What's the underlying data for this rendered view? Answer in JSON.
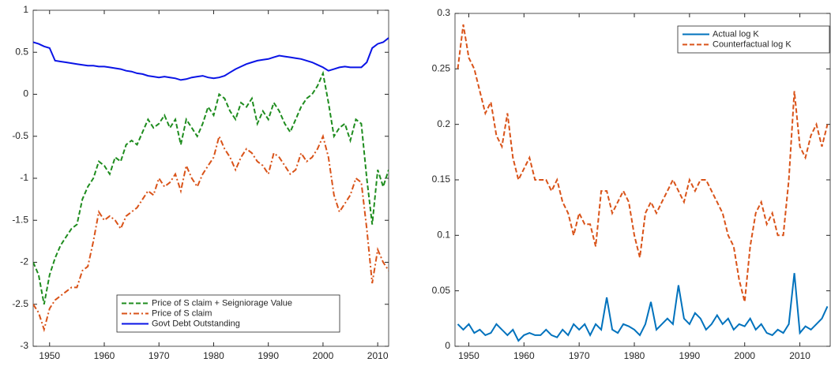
{
  "chart_data": [
    {
      "type": "line",
      "x": [
        1947,
        1948,
        1949,
        1950,
        1951,
        1952,
        1953,
        1954,
        1955,
        1956,
        1957,
        1958,
        1959,
        1960,
        1961,
        1962,
        1963,
        1964,
        1965,
        1966,
        1967,
        1968,
        1969,
        1970,
        1971,
        1972,
        1973,
        1974,
        1975,
        1976,
        1977,
        1978,
        1979,
        1980,
        1981,
        1982,
        1983,
        1984,
        1985,
        1986,
        1987,
        1988,
        1989,
        1990,
        1991,
        1992,
        1993,
        1994,
        1995,
        1996,
        1997,
        1998,
        1999,
        2000,
        2001,
        2002,
        2003,
        2004,
        2005,
        2006,
        2007,
        2008,
        2009,
        2010,
        2011,
        2012
      ],
      "series": [
        {
          "name": "Price of S claim + Seigniorage Value",
          "color": "#1e8c1e",
          "style": "dashed",
          "values": [
            -2.0,
            -2.15,
            -2.5,
            -2.15,
            -1.95,
            -1.8,
            -1.7,
            -1.6,
            -1.55,
            -1.25,
            -1.1,
            -1.0,
            -0.8,
            -0.85,
            -0.95,
            -0.75,
            -0.8,
            -0.6,
            -0.55,
            -0.6,
            -0.45,
            -0.3,
            -0.4,
            -0.35,
            -0.25,
            -0.4,
            -0.3,
            -0.6,
            -0.3,
            -0.4,
            -0.5,
            -0.35,
            -0.15,
            -0.25,
            0.0,
            -0.05,
            -0.2,
            -0.3,
            -0.1,
            -0.15,
            -0.05,
            -0.35,
            -0.2,
            -0.3,
            -0.1,
            -0.2,
            -0.35,
            -0.45,
            -0.3,
            -0.15,
            -0.05,
            0.0,
            0.1,
            0.25,
            -0.1,
            -0.5,
            -0.4,
            -0.35,
            -0.55,
            -0.3,
            -0.35,
            -1.0,
            -1.55,
            -0.9,
            -1.1,
            -0.9
          ]
        },
        {
          "name": "Price of S claim",
          "color": "#d95319",
          "style": "dashdot",
          "values": [
            -2.5,
            -2.6,
            -2.8,
            -2.55,
            -2.45,
            -2.4,
            -2.35,
            -2.3,
            -2.3,
            -2.1,
            -2.05,
            -1.75,
            -1.4,
            -1.5,
            -1.45,
            -1.5,
            -1.6,
            -1.45,
            -1.4,
            -1.35,
            -1.25,
            -1.15,
            -1.2,
            -1.0,
            -1.1,
            -1.05,
            -0.95,
            -1.15,
            -0.85,
            -1.0,
            -1.1,
            -0.95,
            -0.85,
            -0.75,
            -0.5,
            -0.65,
            -0.75,
            -0.9,
            -0.75,
            -0.65,
            -0.7,
            -0.8,
            -0.85,
            -0.95,
            -0.7,
            -0.75,
            -0.85,
            -0.95,
            -0.9,
            -0.7,
            -0.8,
            -0.75,
            -0.65,
            -0.5,
            -0.75,
            -1.2,
            -1.4,
            -1.3,
            -1.2,
            -1.0,
            -1.05,
            -1.6,
            -2.25,
            -1.85,
            -2.0,
            -2.1
          ]
        },
        {
          "name": "Govt Debt Outstanding",
          "color": "#0a14e6",
          "style": "solid",
          "values": [
            0.62,
            0.6,
            0.57,
            0.55,
            0.4,
            0.39,
            0.38,
            0.37,
            0.36,
            0.35,
            0.34,
            0.34,
            0.33,
            0.33,
            0.32,
            0.31,
            0.3,
            0.28,
            0.27,
            0.25,
            0.24,
            0.22,
            0.21,
            0.2,
            0.21,
            0.2,
            0.19,
            0.17,
            0.18,
            0.2,
            0.21,
            0.22,
            0.2,
            0.19,
            0.2,
            0.22,
            0.26,
            0.3,
            0.33,
            0.36,
            0.38,
            0.4,
            0.41,
            0.42,
            0.44,
            0.46,
            0.45,
            0.44,
            0.43,
            0.42,
            0.4,
            0.38,
            0.35,
            0.32,
            0.28,
            0.3,
            0.32,
            0.33,
            0.32,
            0.32,
            0.32,
            0.38,
            0.55,
            0.6,
            0.62,
            0.67
          ]
        }
      ],
      "xlim": [
        1947,
        2012
      ],
      "xticks": [
        1950,
        1960,
        1970,
        1980,
        1990,
        2000,
        2010
      ],
      "ylim": [
        -3,
        1
      ],
      "yticks": [
        -3,
        -2.5,
        -2,
        -1.5,
        -1,
        -0.5,
        0,
        0.5,
        1
      ],
      "legend": "lower right"
    },
    {
      "type": "line",
      "x": [
        1948,
        1949,
        1950,
        1951,
        1952,
        1953,
        1954,
        1955,
        1956,
        1957,
        1958,
        1959,
        1960,
        1961,
        1962,
        1963,
        1964,
        1965,
        1966,
        1967,
        1968,
        1969,
        1970,
        1971,
        1972,
        1973,
        1974,
        1975,
        1976,
        1977,
        1978,
        1979,
        1980,
        1981,
        1982,
        1983,
        1984,
        1985,
        1986,
        1987,
        1988,
        1989,
        1990,
        1991,
        1992,
        1993,
        1994,
        1995,
        1996,
        1997,
        1998,
        1999,
        2000,
        2001,
        2002,
        2003,
        2004,
        2005,
        2006,
        2007,
        2008,
        2009,
        2010,
        2011,
        2012,
        2013,
        2014,
        2015
      ],
      "series": [
        {
          "name": "Actual log K",
          "color": "#0072bd",
          "style": "solid",
          "values": [
            0.02,
            0.015,
            0.02,
            0.012,
            0.015,
            0.01,
            0.012,
            0.02,
            0.015,
            0.01,
            0.015,
            0.005,
            0.01,
            0.012,
            0.01,
            0.01,
            0.015,
            0.01,
            0.008,
            0.015,
            0.01,
            0.02,
            0.015,
            0.02,
            0.01,
            0.02,
            0.015,
            0.044,
            0.015,
            0.012,
            0.02,
            0.018,
            0.015,
            0.01,
            0.02,
            0.04,
            0.015,
            0.02,
            0.025,
            0.02,
            0.055,
            0.025,
            0.02,
            0.03,
            0.025,
            0.015,
            0.02,
            0.028,
            0.02,
            0.025,
            0.015,
            0.02,
            0.018,
            0.025,
            0.015,
            0.02,
            0.012,
            0.01,
            0.015,
            0.012,
            0.02,
            0.066,
            0.012,
            0.018,
            0.015,
            0.02,
            0.025,
            0.036
          ]
        },
        {
          "name": "Counterfactual log K",
          "color": "#d95319",
          "style": "dashed",
          "values": [
            0.25,
            0.29,
            0.26,
            0.25,
            0.23,
            0.21,
            0.22,
            0.19,
            0.18,
            0.21,
            0.17,
            0.15,
            0.16,
            0.17,
            0.15,
            0.15,
            0.15,
            0.14,
            0.15,
            0.13,
            0.12,
            0.1,
            0.12,
            0.11,
            0.11,
            0.09,
            0.14,
            0.14,
            0.12,
            0.13,
            0.14,
            0.13,
            0.1,
            0.08,
            0.12,
            0.13,
            0.12,
            0.13,
            0.14,
            0.15,
            0.14,
            0.13,
            0.15,
            0.14,
            0.15,
            0.15,
            0.14,
            0.13,
            0.12,
            0.1,
            0.09,
            0.06,
            0.04,
            0.09,
            0.12,
            0.13,
            0.11,
            0.12,
            0.1,
            0.1,
            0.15,
            0.23,
            0.18,
            0.17,
            0.19,
            0.2,
            0.18,
            0.2
          ]
        }
      ],
      "xlim": [
        1947.5,
        2015.5
      ],
      "xticks": [
        1950,
        1960,
        1970,
        1980,
        1990,
        2000,
        2010
      ],
      "ylim": [
        0,
        0.3
      ],
      "yticks": [
        0,
        0.05,
        0.1,
        0.15,
        0.2,
        0.25,
        0.3
      ],
      "legend": "upper right"
    }
  ]
}
